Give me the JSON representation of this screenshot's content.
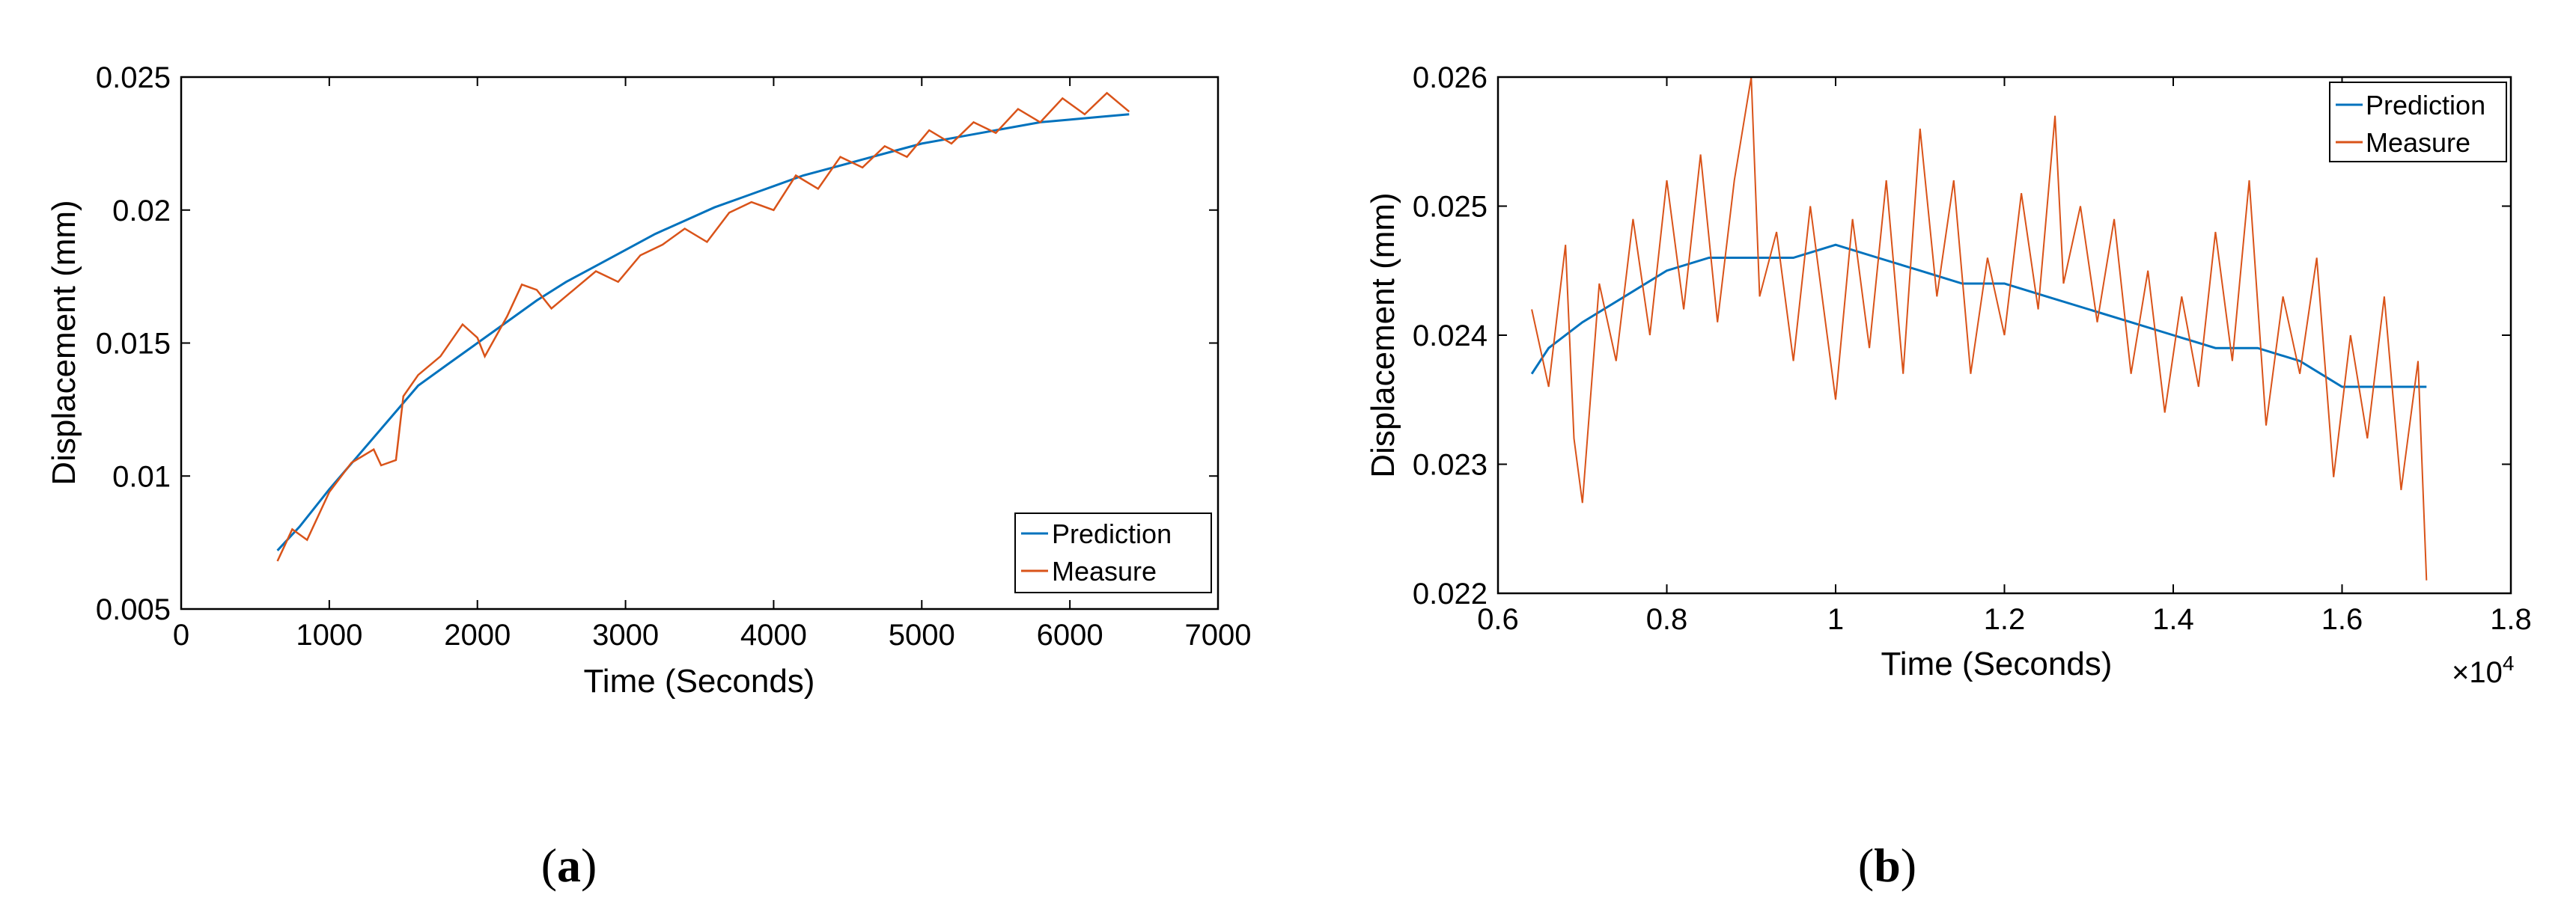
{
  "chart_data": [
    {
      "type": "line",
      "caption": {
        "open": "(",
        "letter": "a",
        "close": ")"
      },
      "xlabel": "Time (Seconds)",
      "ylabel": "Displacement (mm)",
      "xlim": [
        0,
        7000
      ],
      "ylim": [
        0.005,
        0.025
      ],
      "xticks": [
        0,
        1000,
        2000,
        3000,
        4000,
        5000,
        6000,
        7000
      ],
      "xtick_labels": [
        "0",
        "1000",
        "2000",
        "3000",
        "4000",
        "5000",
        "6000",
        "7000"
      ],
      "yticks": [
        0.005,
        0.01,
        0.015,
        0.02,
        0.025
      ],
      "ytick_labels": [
        "0.005",
        "0.01",
        "0.015",
        "0.02",
        "0.025"
      ],
      "x_multiplier": "",
      "legend_position": "bottom-right",
      "series": [
        {
          "name": "Prediction",
          "color": "#0072BD",
          "x": [
            650,
            800,
            1000,
            1200,
            1400,
            1600,
            1800,
            2000,
            2200,
            2400,
            2600,
            2800,
            3000,
            3200,
            3400,
            3600,
            3800,
            4000,
            4200,
            4400,
            4600,
            4800,
            5000,
            5200,
            5400,
            5600,
            5800,
            6000,
            6200,
            6400
          ],
          "values": [
            0.0072,
            0.0081,
            0.0095,
            0.0108,
            0.0121,
            0.0134,
            0.0142,
            0.015,
            0.0158,
            0.0166,
            0.0173,
            0.0179,
            0.0185,
            0.0191,
            0.0196,
            0.0201,
            0.0205,
            0.0209,
            0.0213,
            0.0216,
            0.0219,
            0.0222,
            0.0225,
            0.0227,
            0.0229,
            0.0231,
            0.0233,
            0.0234,
            0.0235,
            0.0236
          ]
        },
        {
          "name": "Measure",
          "color": "#D95319",
          "x": [
            650,
            750,
            850,
            1000,
            1150,
            1300,
            1350,
            1450,
            1500,
            1600,
            1750,
            1900,
            2000,
            2050,
            2200,
            2300,
            2400,
            2500,
            2650,
            2800,
            2950,
            3100,
            3250,
            3400,
            3550,
            3700,
            3850,
            4000,
            4150,
            4300,
            4450,
            4600,
            4750,
            4900,
            5050,
            5200,
            5350,
            5500,
            5650,
            5800,
            5950,
            6100,
            6250,
            6400
          ],
          "values": [
            0.0068,
            0.008,
            0.0076,
            0.0094,
            0.0105,
            0.011,
            0.0104,
            0.0106,
            0.013,
            0.0138,
            0.0145,
            0.0157,
            0.0152,
            0.0145,
            0.016,
            0.0172,
            0.017,
            0.0163,
            0.017,
            0.0177,
            0.0173,
            0.0183,
            0.0187,
            0.0193,
            0.0188,
            0.0199,
            0.0203,
            0.02,
            0.0213,
            0.0208,
            0.022,
            0.0216,
            0.0224,
            0.022,
            0.023,
            0.0225,
            0.0233,
            0.0229,
            0.0238,
            0.0233,
            0.0242,
            0.0236,
            0.0244,
            0.0237
          ]
        }
      ]
    },
    {
      "type": "line",
      "caption": {
        "open": "(",
        "letter": "b",
        "close": ")"
      },
      "xlabel": "Time (Seconds)",
      "ylabel": "Displacement (mm)",
      "xlim": [
        0.6,
        1.8
      ],
      "ylim": [
        0.022,
        0.026
      ],
      "xticks": [
        0.6,
        0.8,
        1.0,
        1.2,
        1.4,
        1.6,
        1.8
      ],
      "xtick_labels": [
        "0.6",
        "0.8",
        "1",
        "1.2",
        "1.4",
        "1.6",
        "1.8"
      ],
      "yticks": [
        0.022,
        0.023,
        0.024,
        0.025,
        0.026
      ],
      "ytick_labels": [
        "0.022",
        "0.023",
        "0.024",
        "0.025",
        "0.026"
      ],
      "x_multiplier": "×10",
      "x_multiplier_exp": "4",
      "legend_position": "top-right",
      "series": [
        {
          "name": "Prediction",
          "color": "#0072BD",
          "x": [
            0.64,
            0.66,
            0.7,
            0.75,
            0.8,
            0.85,
            0.9,
            0.95,
            1.0,
            1.05,
            1.1,
            1.15,
            1.2,
            1.25,
            1.3,
            1.35,
            1.4,
            1.45,
            1.5,
            1.55,
            1.6,
            1.65,
            1.7
          ],
          "values": [
            0.0237,
            0.0239,
            0.0241,
            0.0243,
            0.0245,
            0.0246,
            0.0246,
            0.0246,
            0.0247,
            0.0246,
            0.0245,
            0.0244,
            0.0244,
            0.0243,
            0.0242,
            0.0241,
            0.024,
            0.0239,
            0.0239,
            0.0238,
            0.0236,
            0.0236,
            0.0236
          ]
        },
        {
          "name": "Measure",
          "color": "#D95319",
          "x": [
            0.64,
            0.66,
            0.68,
            0.69,
            0.7,
            0.72,
            0.74,
            0.76,
            0.78,
            0.8,
            0.82,
            0.84,
            0.86,
            0.88,
            0.9,
            0.91,
            0.93,
            0.95,
            0.97,
            0.99,
            1.0,
            1.02,
            1.04,
            1.06,
            1.08,
            1.1,
            1.12,
            1.14,
            1.16,
            1.18,
            1.2,
            1.22,
            1.24,
            1.26,
            1.27,
            1.29,
            1.31,
            1.33,
            1.35,
            1.37,
            1.39,
            1.41,
            1.43,
            1.45,
            1.47,
            1.49,
            1.51,
            1.53,
            1.55,
            1.57,
            1.59,
            1.61,
            1.63,
            1.65,
            1.67,
            1.69,
            1.7
          ],
          "values": [
            0.0242,
            0.0236,
            0.0247,
            0.0232,
            0.0227,
            0.0244,
            0.0238,
            0.0249,
            0.024,
            0.0252,
            0.0242,
            0.0254,
            0.0241,
            0.0252,
            0.026,
            0.0243,
            0.0248,
            0.0238,
            0.025,
            0.024,
            0.0235,
            0.0249,
            0.0239,
            0.0252,
            0.0237,
            0.0256,
            0.0243,
            0.0252,
            0.0237,
            0.0246,
            0.024,
            0.0251,
            0.0242,
            0.0257,
            0.0244,
            0.025,
            0.0241,
            0.0249,
            0.0237,
            0.0245,
            0.0234,
            0.0243,
            0.0236,
            0.0248,
            0.0238,
            0.0252,
            0.0233,
            0.0243,
            0.0237,
            0.0246,
            0.0229,
            0.024,
            0.0232,
            0.0243,
            0.0228,
            0.0238,
            0.0221
          ]
        }
      ]
    }
  ]
}
